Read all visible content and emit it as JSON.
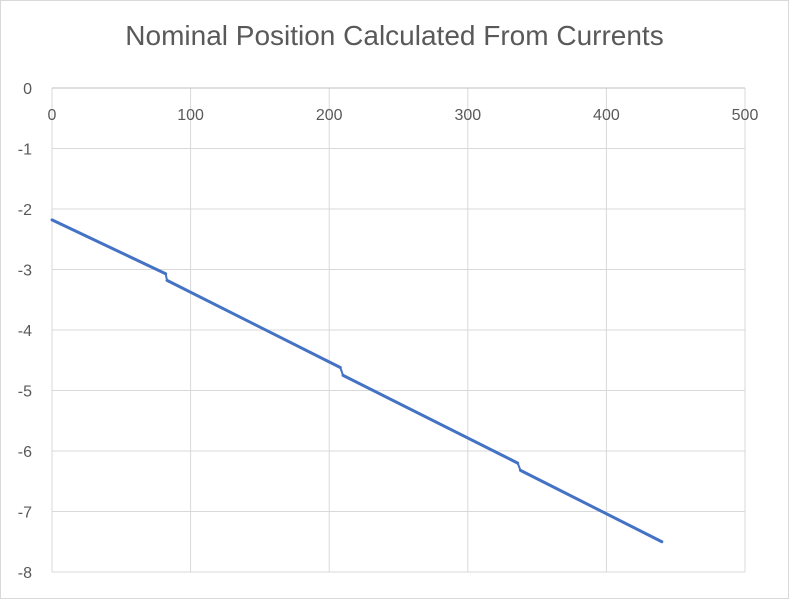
{
  "chart_data": {
    "type": "scatter",
    "title": "Nominal Position Calculated From Currents",
    "xlabel": "",
    "ylabel": "",
    "xlim": [
      0,
      500
    ],
    "ylim": [
      -8,
      0
    ],
    "x_ticks": [
      "0",
      "100",
      "200",
      "300",
      "400",
      "500"
    ],
    "y_ticks": [
      "0",
      "-1",
      "-2",
      "-3",
      "-4",
      "-5",
      "-6",
      "-7",
      "-8"
    ],
    "x_tick_values": [
      0,
      100,
      200,
      300,
      400,
      500
    ],
    "y_tick_values": [
      0,
      -1,
      -2,
      -3,
      -4,
      -5,
      -6,
      -7,
      -8
    ],
    "x_axis_position": "top",
    "grid": true,
    "legend": "none",
    "color": "#4472c4",
    "segments": [
      {
        "x_start": 0,
        "y_start": -2.18,
        "x_end": 82,
        "y_end": -3.07
      },
      {
        "x_start": 83,
        "y_start": -3.18,
        "x_end": 208,
        "y_end": -4.62
      },
      {
        "x_start": 210,
        "y_start": -4.75,
        "x_end": 336,
        "y_end": -6.2
      },
      {
        "x_start": 338,
        "y_start": -6.32,
        "x_end": 440,
        "y_end": -7.5
      }
    ]
  }
}
